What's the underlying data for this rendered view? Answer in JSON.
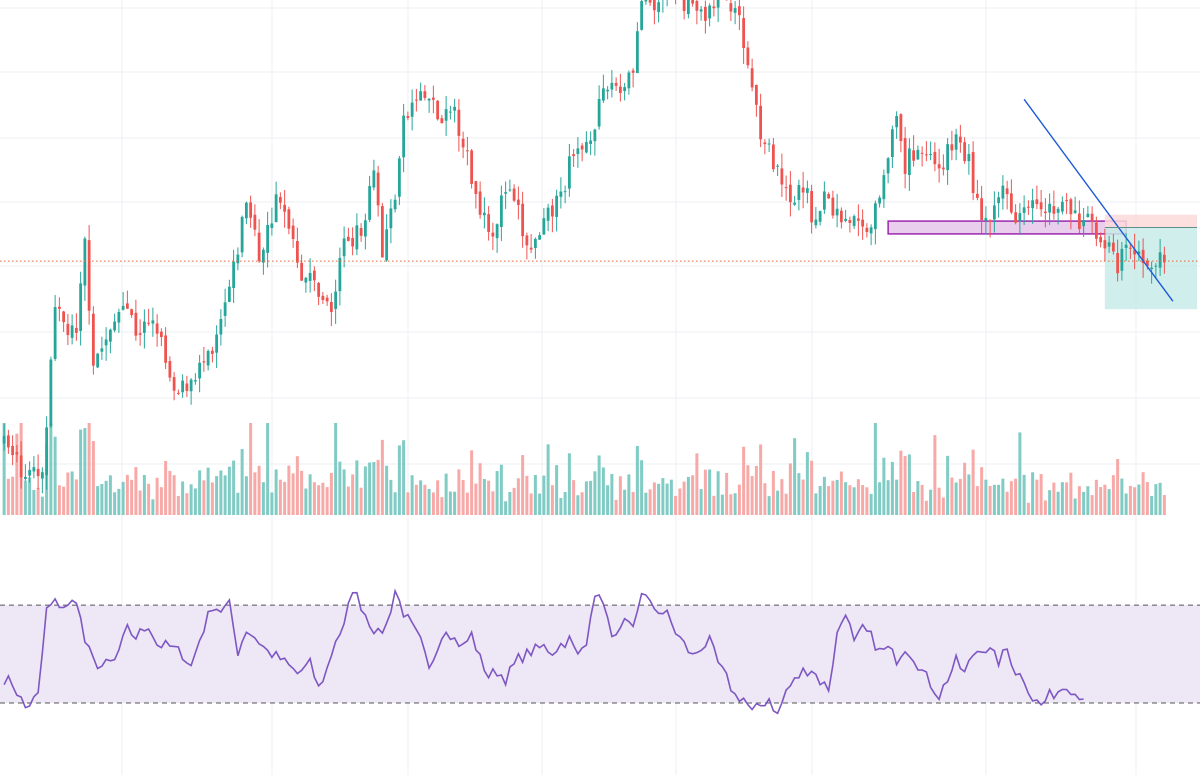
{
  "colors": {
    "up": "#26a69a",
    "down": "#ef5350",
    "up_volume": "#80cbc4",
    "down_volume": "#f7a9a7",
    "grid": "#eceff3",
    "rsi_line": "#7e57c2",
    "rsi_band": "#ede7f6",
    "rsi_band_edge": "#555555",
    "price_line": "#e0673b",
    "trendline": "#1e5bd8",
    "zone_fill": "#e1bee7",
    "zone_edge": "#9c27b0",
    "stop_fill": "#fcd9d9",
    "target_fill": "#c8ebe7",
    "entry_line": "#5f8f8a"
  },
  "chart_data": [
    {
      "type": "candlestick",
      "panel": "price",
      "title": "",
      "xlabel": "",
      "ylabel": "",
      "grid": true,
      "x": {
        "bars": 274
      },
      "ylim": [
        -10,
        132
      ],
      "current_price": 50.5,
      "anchors": [
        [
          0,
          -7
        ],
        [
          4,
          -14
        ],
        [
          9,
          -18
        ],
        [
          12,
          34
        ],
        [
          17,
          26
        ],
        [
          19,
          56
        ],
        [
          21,
          20
        ],
        [
          25,
          27
        ],
        [
          28,
          40
        ],
        [
          31,
          29
        ],
        [
          36,
          30
        ],
        [
          40,
          7
        ],
        [
          45,
          16
        ],
        [
          49,
          20
        ],
        [
          54,
          47
        ],
        [
          57,
          70
        ],
        [
          60,
          52
        ],
        [
          62,
          60
        ],
        [
          64,
          69
        ],
        [
          67,
          63
        ],
        [
          70,
          47
        ],
        [
          74,
          42
        ],
        [
          77,
          34
        ],
        [
          80,
          58
        ],
        [
          84,
          59
        ],
        [
          87,
          82
        ],
        [
          89,
          53
        ],
        [
          92,
          72
        ],
        [
          94,
          93
        ],
        [
          97,
          102
        ],
        [
          100,
          101
        ],
        [
          103,
          93
        ],
        [
          106,
          98
        ],
        [
          108,
          88
        ],
        [
          111,
          71
        ],
        [
          115,
          60
        ],
        [
          118,
          73
        ],
        [
          121,
          65
        ],
        [
          123,
          54
        ],
        [
          126,
          57
        ],
        [
          128,
          64
        ],
        [
          131,
          71
        ],
        [
          133,
          80
        ],
        [
          137,
          88
        ],
        [
          140,
          98
        ],
        [
          143,
          107
        ],
        [
          145,
          104
        ],
        [
          148,
          112
        ],
        [
          150,
          132
        ],
        [
          153,
          128
        ],
        [
          156,
          138
        ],
        [
          158,
          132
        ],
        [
          161,
          132
        ],
        [
          164,
          127
        ],
        [
          167,
          131
        ],
        [
          170,
          133
        ],
        [
          172,
          130
        ],
        [
          175,
          112
        ],
        [
          178,
          92
        ],
        [
          182,
          77
        ],
        [
          185,
          67
        ],
        [
          188,
          74
        ],
        [
          191,
          62
        ],
        [
          193,
          71
        ],
        [
          196,
          65
        ],
        [
          199,
          64
        ],
        [
          202,
          60
        ],
        [
          205,
          66
        ],
        [
          208,
          86
        ],
        [
          210,
          93
        ],
        [
          212,
          80
        ],
        [
          215,
          87
        ],
        [
          218,
          83
        ],
        [
          221,
          81
        ],
        [
          224,
          89
        ],
        [
          227,
          81
        ],
        [
          229,
          68
        ],
        [
          232,
          60
        ],
        [
          235,
          74
        ],
        [
          238,
          66
        ],
        [
          242,
          72
        ],
        [
          244,
          70
        ],
        [
          247,
          66
        ],
        [
          250,
          68
        ],
        [
          253,
          62
        ],
        [
          256,
          63
        ],
        [
          258,
          58
        ],
        [
          260,
          54
        ],
        [
          262,
          47
        ],
        [
          264,
          55
        ],
        [
          266,
          52
        ],
        [
          269,
          51
        ],
        [
          273,
          50
        ]
      ],
      "drawings": [
        {
          "kind": "trendline",
          "from": [
            240,
            101
          ],
          "to": [
            275,
            38
          ]
        },
        {
          "kind": "zone",
          "from_bar": 208,
          "to_bar": 264,
          "top": 63,
          "bottom": 59
        },
        {
          "kind": "position",
          "from_bar": 259,
          "entry": 61,
          "stop": 65,
          "target": 35.5
        }
      ]
    },
    {
      "type": "bar",
      "panel": "volume",
      "series": [
        {
          "values": []
        }
      ],
      "ylim": [
        0,
        100
      ]
    },
    {
      "type": "line",
      "panel": "rsi",
      "ylim": [
        10,
        95
      ],
      "bands": {
        "upper": 70,
        "lower": 30
      },
      "anchors": [
        [
          0,
          40
        ],
        [
          2,
          38
        ],
        [
          5,
          28
        ],
        [
          8,
          33
        ],
        [
          10,
          68
        ],
        [
          12,
          71
        ],
        [
          15,
          69
        ],
        [
          17,
          73
        ],
        [
          19,
          55
        ],
        [
          21,
          47
        ],
        [
          23,
          45
        ],
        [
          26,
          47
        ],
        [
          29,
          60
        ],
        [
          31,
          57
        ],
        [
          34,
          62
        ],
        [
          36,
          54
        ],
        [
          39,
          53
        ],
        [
          42,
          50
        ],
        [
          44,
          45
        ],
        [
          46,
          56
        ],
        [
          49,
          70
        ],
        [
          51,
          68
        ],
        [
          53,
          70
        ],
        [
          55,
          51
        ],
        [
          57,
          60
        ],
        [
          59,
          57
        ],
        [
          62,
          51
        ],
        [
          65,
          48
        ],
        [
          67,
          45
        ],
        [
          69,
          42
        ],
        [
          72,
          46
        ],
        [
          74,
          36
        ],
        [
          76,
          44
        ],
        [
          78,
          56
        ],
        [
          80,
          61
        ],
        [
          82,
          77
        ],
        [
          84,
          70
        ],
        [
          86,
          63
        ],
        [
          88,
          58
        ],
        [
          90,
          62
        ],
        [
          92,
          76
        ],
        [
          94,
          67
        ],
        [
          96,
          61
        ],
        [
          98,
          55
        ],
        [
          100,
          43
        ],
        [
          102,
          54
        ],
        [
          104,
          61
        ],
        [
          106,
          56
        ],
        [
          108,
          53
        ],
        [
          110,
          58
        ],
        [
          112,
          48
        ],
        [
          114,
          41
        ],
        [
          116,
          43
        ],
        [
          118,
          40
        ],
        [
          121,
          48
        ],
        [
          124,
          51
        ],
        [
          127,
          53
        ],
        [
          129,
          51
        ],
        [
          131,
          54
        ],
        [
          133,
          56
        ],
        [
          135,
          49
        ],
        [
          137,
          56
        ],
        [
          138,
          67
        ],
        [
          140,
          76
        ],
        [
          142,
          63
        ],
        [
          144,
          56
        ],
        [
          146,
          62
        ],
        [
          148,
          60
        ],
        [
          150,
          76
        ],
        [
          152,
          70
        ],
        [
          154,
          68
        ],
        [
          156,
          66
        ],
        [
          158,
          59
        ],
        [
          160,
          54
        ],
        [
          162,
          49
        ],
        [
          164,
          53
        ],
        [
          166,
          55
        ],
        [
          168,
          46
        ],
        [
          170,
          40
        ],
        [
          172,
          33
        ],
        [
          174,
          32
        ],
        [
          176,
          26
        ],
        [
          178,
          29
        ],
        [
          180,
          32
        ],
        [
          182,
          25
        ],
        [
          184,
          35
        ],
        [
          186,
          39
        ],
        [
          188,
          43
        ],
        [
          190,
          44
        ],
        [
          192,
          39
        ],
        [
          194,
          36
        ],
        [
          196,
          58
        ],
        [
          198,
          68
        ],
        [
          200,
          54
        ],
        [
          202,
          60
        ],
        [
          204,
          57
        ],
        [
          206,
          51
        ],
        [
          208,
          52
        ],
        [
          210,
          48
        ],
        [
          212,
          53
        ],
        [
          214,
          49
        ],
        [
          216,
          43
        ],
        [
          218,
          38
        ],
        [
          220,
          33
        ],
        [
          222,
          40
        ],
        [
          224,
          47
        ],
        [
          226,
          42
        ],
        [
          228,
          50
        ],
        [
          230,
          53
        ],
        [
          232,
          51
        ],
        [
          234,
          47
        ],
        [
          236,
          52
        ],
        [
          238,
          43
        ],
        [
          240,
          40
        ],
        [
          242,
          32
        ],
        [
          244,
          29
        ],
        [
          246,
          33
        ],
        [
          248,
          35
        ],
        [
          250,
          38
        ],
        [
          252,
          34
        ],
        [
          254,
          33
        ]
      ]
    }
  ]
}
